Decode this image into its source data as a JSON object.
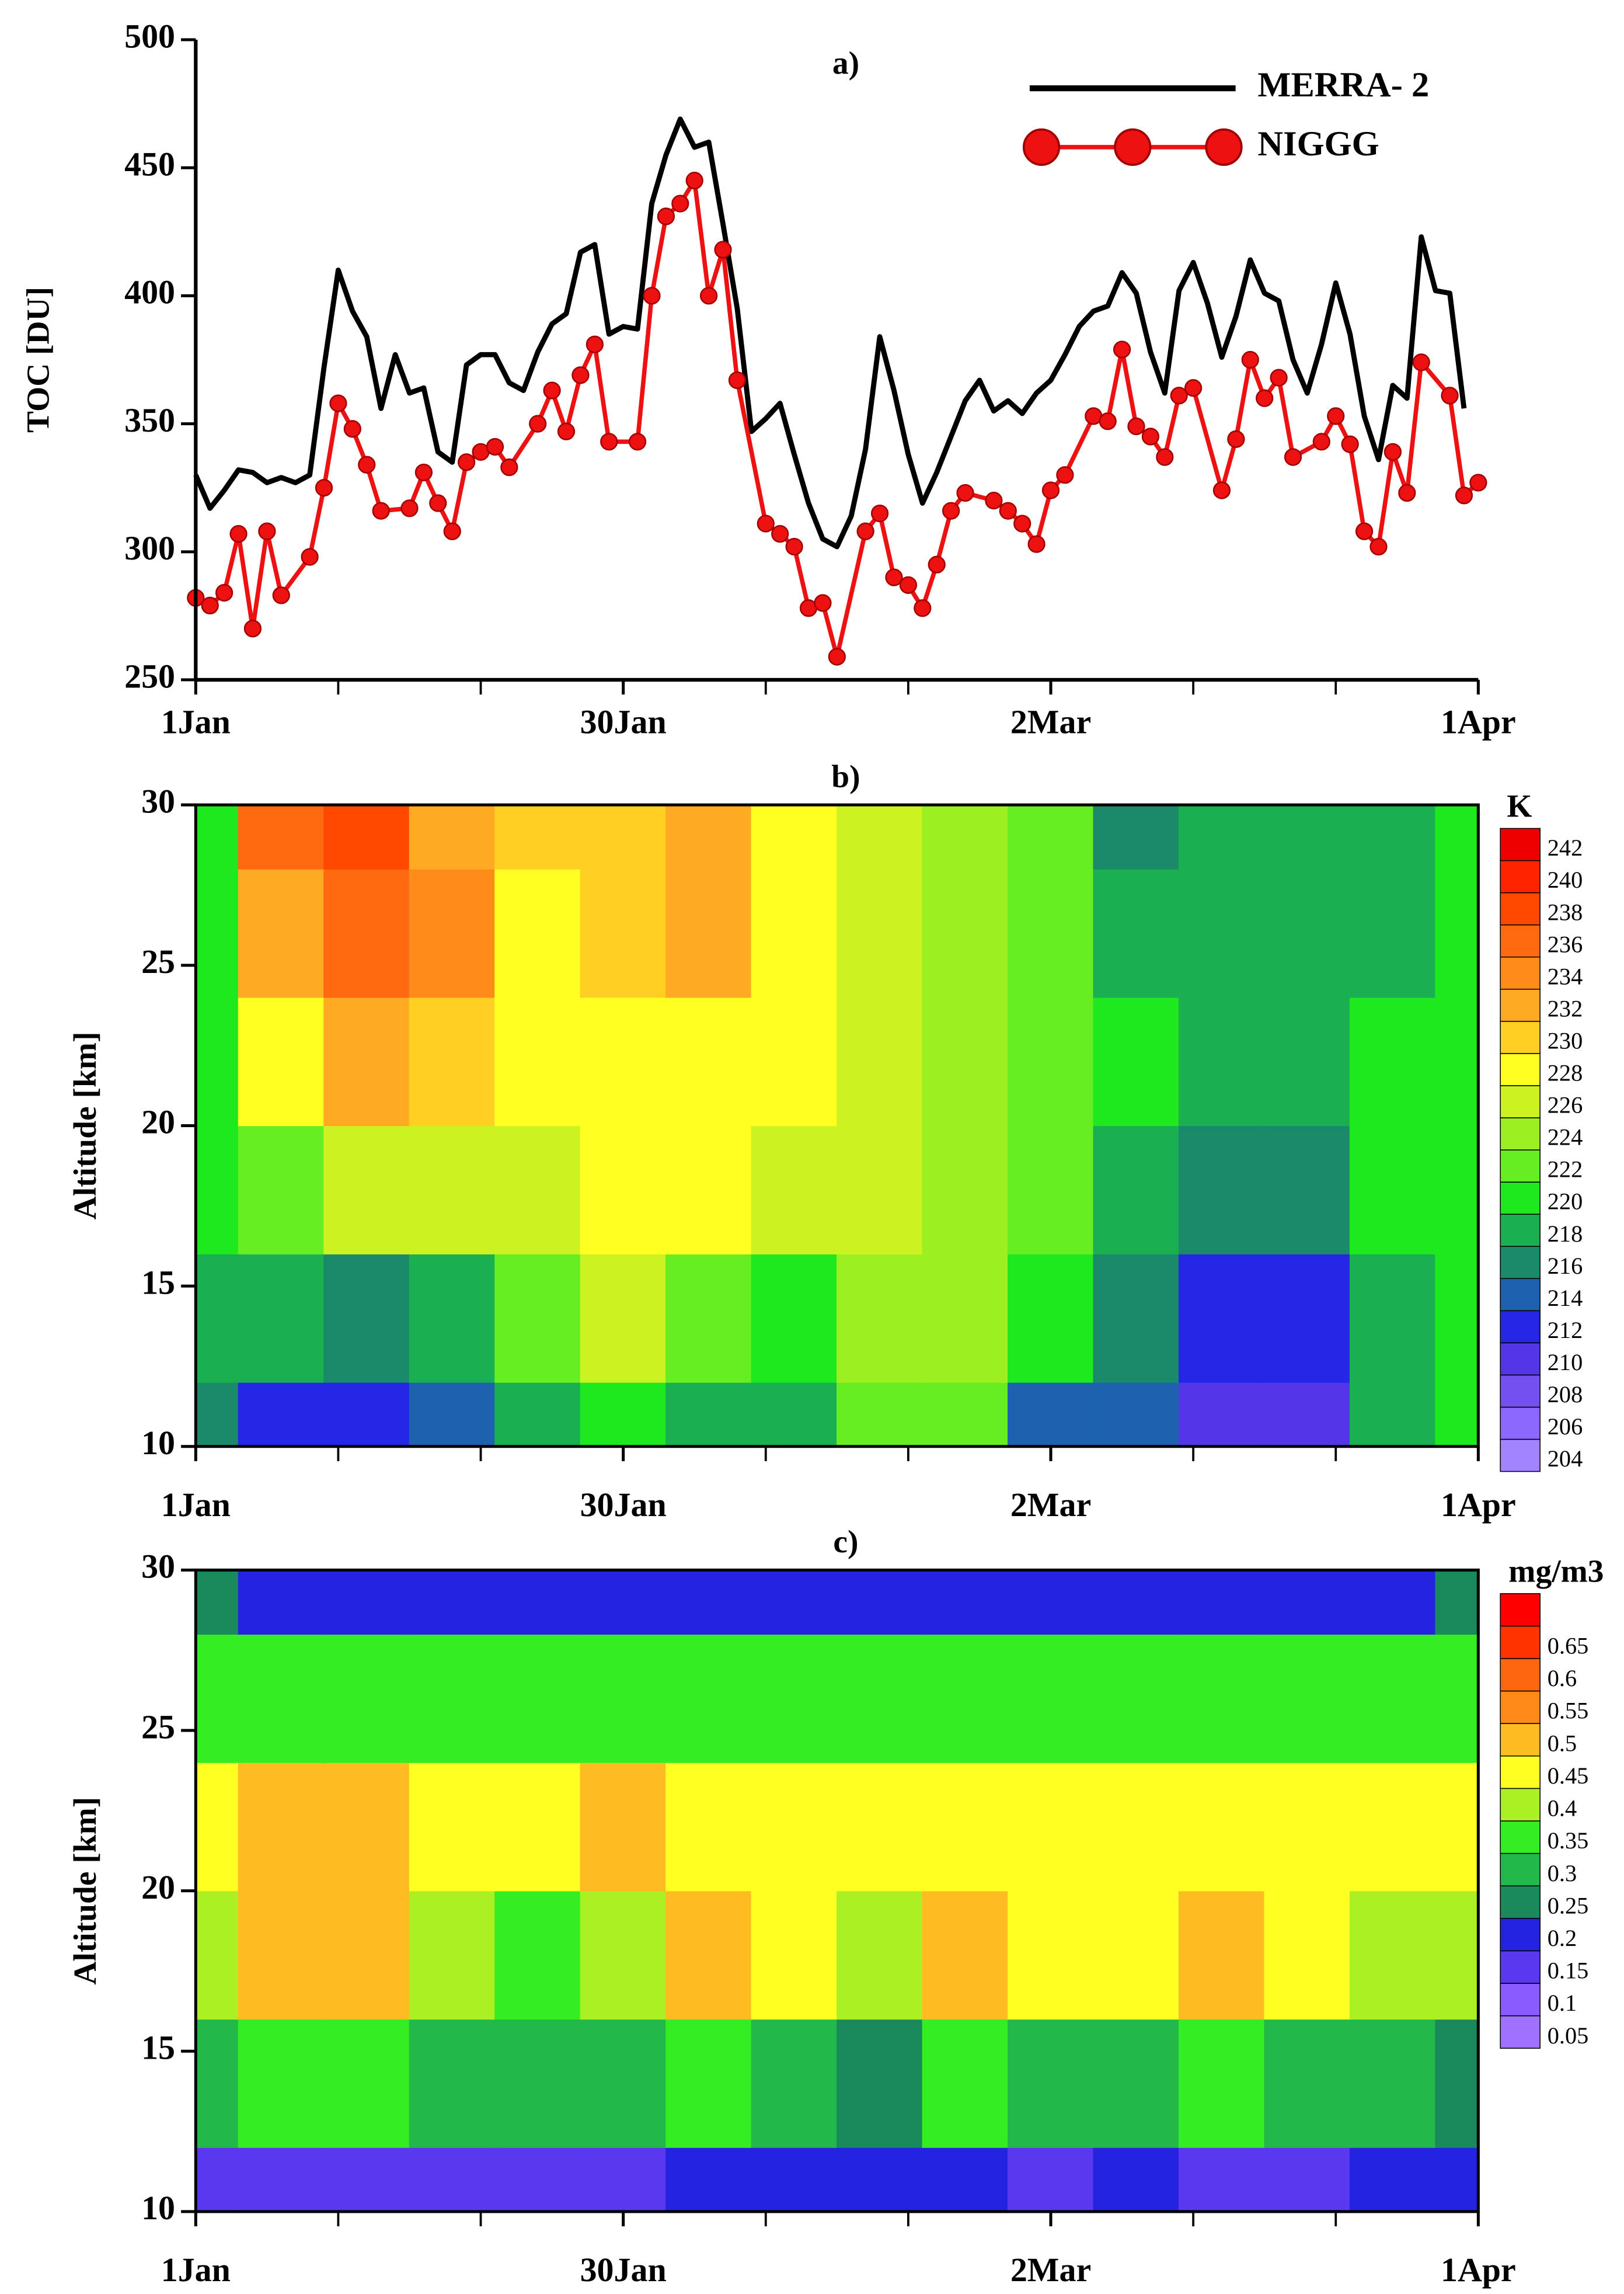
{
  "chart_data": [
    {
      "type": "line",
      "title": "a)",
      "ylabel": "TOC [DU]",
      "legend": "upper right",
      "xlim": [
        0,
        90
      ],
      "xticks": [
        {
          "value": 0,
          "label": "1Jan"
        },
        {
          "value": 30,
          "label": "30Jan"
        },
        {
          "value": 60,
          "label": "2Mar"
        },
        {
          "value": 90,
          "label": "1Apr"
        }
      ],
      "xminor": [
        10,
        20,
        40,
        50,
        70,
        80
      ],
      "ylim": [
        250,
        500
      ],
      "yticks": [
        250,
        300,
        350,
        400,
        450,
        500
      ],
      "series": [
        {
          "name": "MERRA- 2",
          "color": "#000000",
          "x": [
            0,
            1,
            2,
            3,
            4,
            5,
            6,
            7,
            8,
            9,
            10,
            11,
            12,
            13,
            14,
            15,
            16,
            17,
            18,
            19,
            20,
            21,
            22,
            23,
            24,
            25,
            26,
            27,
            28,
            29,
            30,
            31,
            32,
            33,
            34,
            35,
            36,
            37,
            38,
            39,
            40,
            41,
            42,
            43,
            44,
            45,
            46,
            47,
            48,
            49,
            50,
            51,
            52,
            53,
            54,
            55,
            56,
            57,
            58,
            59,
            60,
            61,
            62,
            63,
            64,
            65,
            66,
            67,
            68,
            69,
            70,
            71,
            72,
            73,
            74,
            75,
            76,
            77,
            78,
            79,
            80,
            81,
            82,
            83,
            84,
            85,
            86,
            87,
            88,
            89
          ],
          "values": [
            330,
            317,
            324,
            332,
            331,
            327,
            329,
            327,
            330,
            372,
            410,
            394,
            384,
            356,
            377,
            362,
            364,
            339,
            335,
            373,
            377,
            377,
            366,
            363,
            378,
            389,
            393,
            417,
            420,
            385,
            388,
            387,
            436,
            455,
            469,
            458,
            460,
            428,
            395,
            347,
            352,
            358,
            338,
            319,
            305,
            302,
            314,
            340,
            384,
            363,
            338,
            319,
            331,
            345,
            359,
            367,
            355,
            359,
            354,
            362,
            367,
            377,
            388,
            394,
            396,
            409,
            401,
            378,
            362,
            402,
            413,
            397,
            376,
            392,
            414,
            401,
            398,
            375,
            362,
            381,
            405,
            385,
            353,
            336,
            365,
            360,
            423,
            402,
            401,
            356
          ]
        },
        {
          "name": "NIGGG",
          "color": "#ee1111",
          "marker": "circle",
          "x": [
            0,
            1,
            2,
            3,
            4,
            5,
            6,
            8,
            9,
            10,
            11,
            12,
            13,
            15,
            16,
            17,
            18,
            19,
            20,
            21,
            22,
            24,
            25,
            26,
            27,
            28,
            29,
            31,
            32,
            33,
            34,
            35,
            36,
            37,
            38,
            40,
            41,
            42,
            43,
            44,
            45,
            47,
            48,
            49,
            50,
            51,
            52,
            53,
            54,
            56,
            57,
            58,
            59,
            60,
            61,
            63,
            64,
            65,
            66,
            67,
            68,
            69,
            70,
            72,
            73,
            74,
            75,
            76,
            77,
            79,
            80,
            81,
            82,
            83,
            84,
            85,
            86,
            88,
            89,
            90
          ],
          "values": [
            282,
            279,
            284,
            307,
            270,
            308,
            283,
            298,
            325,
            358,
            348,
            334,
            316,
            317,
            331,
            319,
            308,
            335,
            339,
            341,
            333,
            350,
            363,
            347,
            369,
            381,
            343,
            343,
            400,
            431,
            436,
            445,
            400,
            418,
            367,
            311,
            307,
            302,
            278,
            280,
            259,
            308,
            315,
            290,
            287,
            278,
            295,
            316,
            323,
            320,
            316,
            311,
            303,
            324,
            330,
            353,
            351,
            379,
            349,
            345,
            337,
            361,
            364,
            324,
            344,
            375,
            360,
            368,
            337,
            343,
            353,
            342,
            308,
            302,
            339,
            323,
            374,
            361,
            322,
            327
          ]
        }
      ]
    },
    {
      "type": "contour",
      "title": "b)",
      "ylabel": "Altitude [km]",
      "colorbar_label": "K",
      "xlim": [
        0,
        90
      ],
      "xticks": [
        {
          "value": 0,
          "label": "1Jan"
        },
        {
          "value": 30,
          "label": "30Jan"
        },
        {
          "value": 60,
          "label": "2Mar"
        },
        {
          "value": 90,
          "label": "1Apr"
        }
      ],
      "xminor": [
        10,
        20,
        40,
        50,
        70,
        80
      ],
      "ylim": [
        10,
        30
      ],
      "yticks": [
        10,
        15,
        20,
        25,
        30
      ],
      "x": [
        0,
        6,
        12,
        18,
        24,
        30,
        36,
        42,
        48,
        54,
        60,
        66,
        72,
        78,
        84,
        90
      ],
      "y": [
        10,
        14,
        18,
        22,
        26,
        30
      ],
      "z": [
        [
          216,
          212,
          212,
          214,
          218,
          220,
          218,
          218,
          222,
          222,
          214,
          214,
          210,
          210,
          218,
          220
        ],
        [
          218,
          218,
          216,
          218,
          222,
          226,
          222,
          220,
          224,
          224,
          220,
          216,
          212,
          212,
          218,
          220
        ],
        [
          220,
          222,
          226,
          226,
          226,
          228,
          228,
          226,
          226,
          224,
          222,
          218,
          216,
          216,
          220,
          220
        ],
        [
          220,
          228,
          232,
          230,
          228,
          228,
          228,
          228,
          226,
          224,
          222,
          220,
          218,
          218,
          220,
          220
        ],
        [
          220,
          232,
          236,
          234,
          228,
          230,
          232,
          228,
          226,
          224,
          222,
          218,
          218,
          218,
          218,
          220
        ],
        [
          220,
          236,
          238,
          232,
          230,
          230,
          232,
          228,
          226,
          224,
          222,
          216,
          218,
          218,
          218,
          220
        ]
      ],
      "levels": [
        204,
        206,
        208,
        210,
        212,
        214,
        216,
        218,
        220,
        222,
        224,
        226,
        228,
        230,
        232,
        234,
        236,
        238,
        240,
        242
      ],
      "colors": [
        "#a384ff",
        "#8c68ff",
        "#7350f0",
        "#5535e8",
        "#2626e6",
        "#1c62ac",
        "#1a8a6a",
        "#1ab052",
        "#1ee81e",
        "#66ee22",
        "#9cf022",
        "#ccf222",
        "#ffff22",
        "#ffd022",
        "#ffaa22",
        "#ff8c1a",
        "#ff6a10",
        "#ff4800",
        "#ff2400",
        "#ee0000"
      ]
    },
    {
      "type": "contour",
      "title": "c)",
      "ylabel": "Altitude [km]",
      "colorbar_label": "mg/m3",
      "xlim": [
        0,
        90
      ],
      "xticks": [
        {
          "value": 0,
          "label": "1Jan"
        },
        {
          "value": 30,
          "label": "30Jan"
        },
        {
          "value": 60,
          "label": "2Mar"
        },
        {
          "value": 90,
          "label": "1Apr"
        }
      ],
      "xminor": [
        10,
        20,
        40,
        50,
        70,
        80
      ],
      "ylim": [
        10,
        30
      ],
      "yticks": [
        10,
        15,
        20,
        25,
        30
      ],
      "x": [
        0,
        6,
        12,
        18,
        24,
        30,
        36,
        42,
        48,
        54,
        60,
        66,
        72,
        78,
        84,
        90
      ],
      "y": [
        10,
        14,
        18,
        22,
        26,
        30
      ],
      "z": [
        [
          0.15,
          0.15,
          0.15,
          0.15,
          0.15,
          0.15,
          0.2,
          0.2,
          0.2,
          0.2,
          0.15,
          0.2,
          0.15,
          0.15,
          0.2,
          0.2
        ],
        [
          0.3,
          0.35,
          0.35,
          0.3,
          0.3,
          0.3,
          0.35,
          0.3,
          0.25,
          0.35,
          0.3,
          0.3,
          0.35,
          0.3,
          0.3,
          0.25
        ],
        [
          0.4,
          0.5,
          0.5,
          0.4,
          0.35,
          0.4,
          0.5,
          0.45,
          0.4,
          0.5,
          0.45,
          0.45,
          0.5,
          0.45,
          0.4,
          0.4
        ],
        [
          0.45,
          0.5,
          0.5,
          0.45,
          0.45,
          0.5,
          0.45,
          0.45,
          0.45,
          0.45,
          0.45,
          0.45,
          0.45,
          0.45,
          0.45,
          0.45
        ],
        [
          0.35,
          0.35,
          0.35,
          0.35,
          0.35,
          0.35,
          0.35,
          0.35,
          0.35,
          0.35,
          0.35,
          0.35,
          0.35,
          0.35,
          0.35,
          0.35
        ],
        [
          0.25,
          0.2,
          0.2,
          0.2,
          0.2,
          0.2,
          0.2,
          0.2,
          0.2,
          0.2,
          0.2,
          0.2,
          0.2,
          0.2,
          0.2,
          0.25
        ]
      ],
      "levels": [
        0.05,
        0.1,
        0.15,
        0.2,
        0.25,
        0.3,
        0.35,
        0.4,
        0.45,
        0.5,
        0.55,
        0.6,
        0.65
      ],
      "colors": [
        "#a070ff",
        "#8a5cff",
        "#5a38f0",
        "#2424e0",
        "#1a8a5a",
        "#22b84a",
        "#33ee22",
        "#aaf022",
        "#ffff22",
        "#ffbb22",
        "#ff8a1a",
        "#ff6610",
        "#ff3300",
        "#ff0000"
      ]
    }
  ]
}
